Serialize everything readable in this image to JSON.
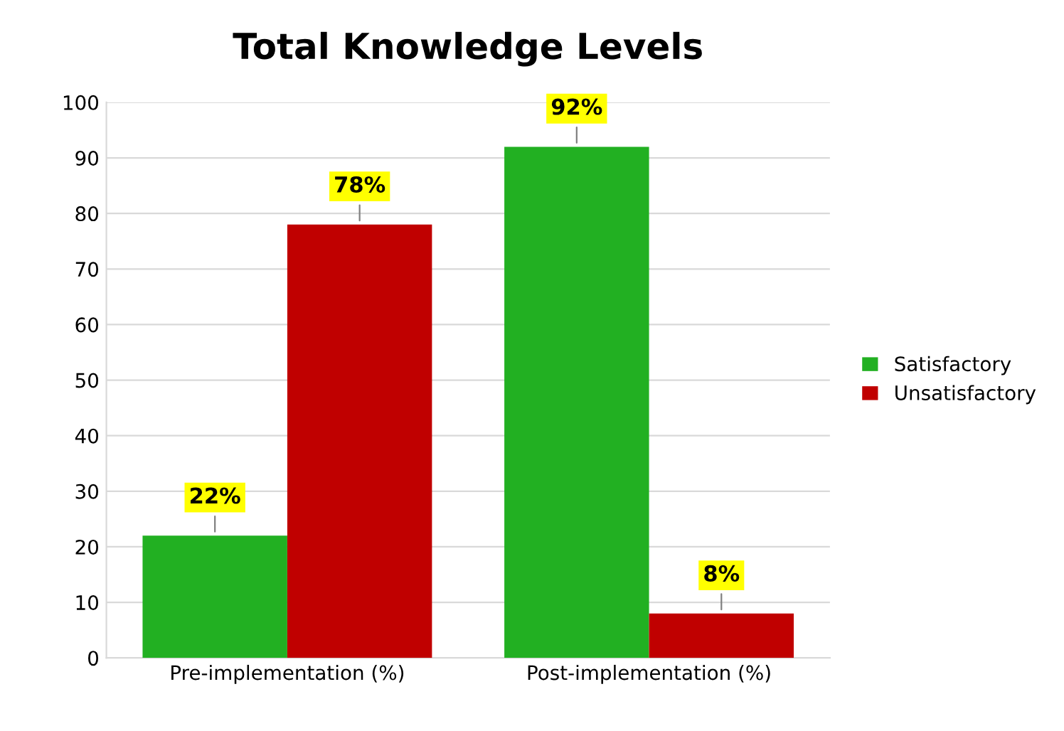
{
  "chart_data": {
    "type": "bar",
    "title": "Total Knowledge Levels",
    "categories": [
      "Pre-implementation (%)",
      "Post-implementation (%)"
    ],
    "series": [
      {
        "name": "Satisfactory",
        "color": "#22b022",
        "values": [
          22,
          92
        ],
        "value_labels": [
          "22%",
          "92%"
        ]
      },
      {
        "name": "Unsatisfactory",
        "color": "#c00000",
        "values": [
          78,
          8
        ],
        "value_labels": [
          "78%",
          "8%"
        ]
      }
    ],
    "ylim": [
      0,
      100
    ],
    "yticks": [
      0,
      10,
      20,
      30,
      40,
      50,
      60,
      70,
      80,
      90,
      100
    ],
    "grid": "y",
    "legend": "right"
  }
}
